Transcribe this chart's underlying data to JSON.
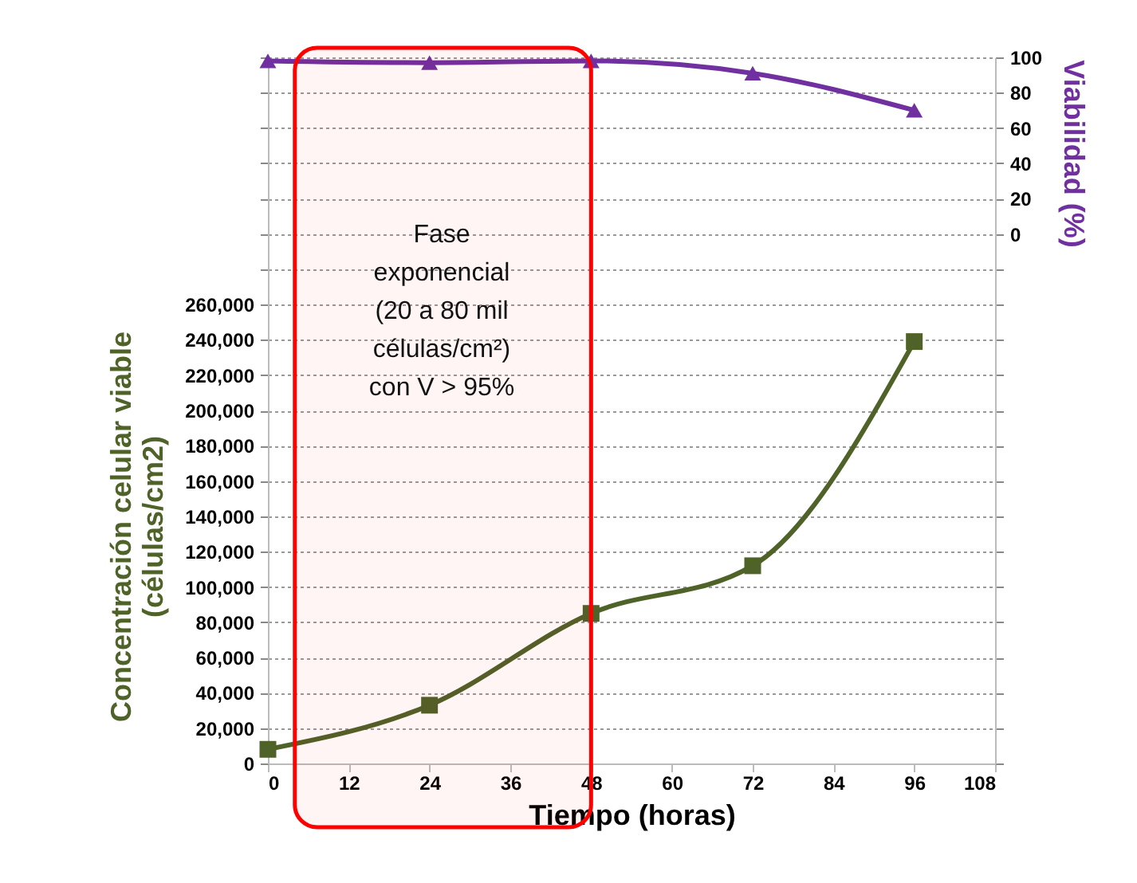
{
  "chart_data": {
    "type": "line",
    "xlabel": "Tiempo (horas)",
    "ylabel": "Concentración celular viable\n(células/cm2)",
    "y2label": "Viabilidad (%)",
    "x": [
      0,
      24,
      48,
      72,
      96
    ],
    "series": [
      {
        "name": null,
        "color": "#4f6228",
        "values": [
          8000,
          33000,
          85000,
          112000,
          239000
        ],
        "marker": "square"
      },
      {
        "name": null,
        "color": "#7030a0",
        "values": [
          98,
          97,
          98,
          91,
          70
        ],
        "axis": "y2",
        "marker": "triangle"
      }
    ],
    "xlim": [
      0,
      108
    ],
    "xticks": [
      0,
      12,
      24,
      36,
      48,
      60,
      72,
      84,
      96,
      108
    ],
    "ylim": [
      0,
      400000
    ],
    "yticks": [
      0,
      {
        "value": 20000,
        "label": "20,000"
      },
      {
        "value": 40000,
        "label": "40,000"
      },
      {
        "value": 60000,
        "label": "60,000"
      },
      {
        "value": 80000,
        "label": "80,000"
      },
      {
        "value": 100000,
        "label": "100,000"
      },
      {
        "value": 120000,
        "label": "120,000"
      },
      {
        "value": 140000,
        "label": "140,000"
      },
      {
        "value": 160000,
        "label": "160,000"
      },
      {
        "value": 180000,
        "label": "180,000"
      },
      {
        "value": 200000,
        "label": "200,000"
      },
      {
        "value": 220000,
        "label": "220,000"
      },
      {
        "value": 240000,
        "label": "240,000"
      },
      {
        "value": 260000,
        "label": "260,000"
      },
      {
        "value": 280000,
        "label": null
      },
      {
        "value": 300000,
        "label": null
      },
      {
        "value": 320000,
        "label": null
      },
      {
        "value": 340000,
        "label": null
      },
      {
        "value": 360000,
        "label": null
      },
      {
        "value": 380000,
        "label": null
      },
      {
        "value": 400000,
        "label": null
      }
    ],
    "y2lim": [
      -300,
      100
    ],
    "y2ticks": [
      {
        "value": -300,
        "label": null
      },
      {
        "value": -280,
        "label": null
      },
      {
        "value": -260,
        "label": null
      },
      {
        "value": -240,
        "label": null
      },
      {
        "value": -220,
        "label": null
      },
      {
        "value": -200,
        "label": null
      },
      {
        "value": -180,
        "label": null
      },
      {
        "value": -160,
        "label": null
      },
      {
        "value": -140,
        "label": null
      },
      {
        "value": -120,
        "label": null
      },
      {
        "value": -100,
        "label": null
      },
      {
        "value": -80,
        "label": null
      },
      {
        "value": -60,
        "label": null
      },
      {
        "value": -40,
        "label": null
      },
      {
        "value": -20,
        "label": null
      },
      0,
      20,
      40,
      60,
      80,
      100
    ],
    "bands": [
      {
        "axis": "x",
        "from": 4,
        "to": 48,
        "color": "#ff0000"
      }
    ],
    "annotations": [
      "Fase\nexponencial\n(20 a 80 mil\ncélulas/cm²)\ncon V > 95%"
    ],
    "grid": "y",
    "line_style": "solid"
  }
}
